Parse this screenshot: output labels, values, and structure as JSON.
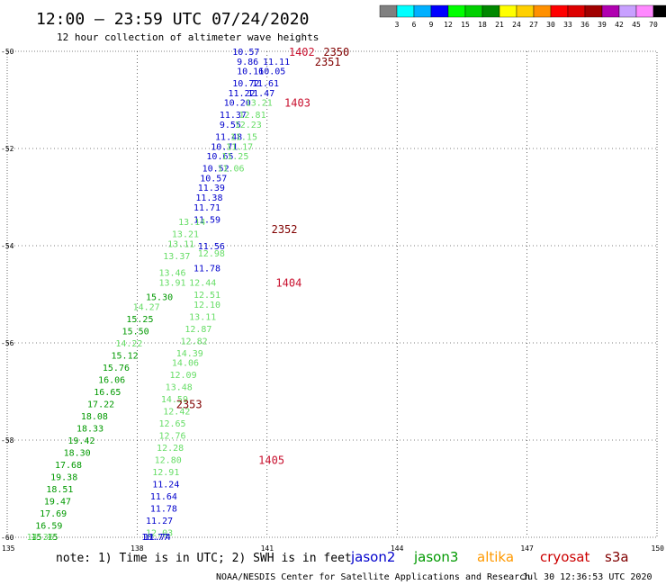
{
  "header": {
    "title": "12:00 — 23:59 UTC 07/24/2020",
    "subtitle": "12 hour collection of altimeter wave heights"
  },
  "colorbar": {
    "unit": "(ft)",
    "ticks": [
      "3",
      "6",
      "9",
      "12",
      "15",
      "18",
      "21",
      "24",
      "27",
      "30",
      "33",
      "36",
      "39",
      "42",
      "45",
      "70"
    ],
    "colors": [
      "#808080",
      "#00ffff",
      "#00b0ff",
      "#0000ff",
      "#00ff00",
      "#00d000",
      "#008800",
      "#ffff00",
      "#ffd000",
      "#ff9000",
      "#ff0000",
      "#dd0000",
      "#a00000",
      "#b000b0",
      "#c8a0ff",
      "#ff88ff",
      "#000000"
    ]
  },
  "map": {
    "lon_range": [
      135,
      150
    ],
    "lat_range": [
      -50,
      -60
    ],
    "lon_ticks": [
      "135",
      "138",
      "141",
      "144",
      "147",
      "150"
    ],
    "lat_ticks": [
      "-50",
      "-52",
      "-54",
      "-56",
      "-58",
      "-60"
    ],
    "grid": "dotted"
  },
  "satellites": [
    {
      "name": "jason2",
      "color": "#0000cc"
    },
    {
      "name": "jason3",
      "color": "#009900"
    },
    {
      "name": "altika",
      "color": "#ff9900"
    },
    {
      "name": "cryosat",
      "color": "#cc0000"
    },
    {
      "name": "s3a",
      "color": "#800000"
    }
  ],
  "track_labels": [
    {
      "text": "1402",
      "lon": 141.5,
      "lat": -50.0,
      "color": "#c8102e"
    },
    {
      "text": "2350",
      "lon": 142.3,
      "lat": -50.0,
      "color": "#800000"
    },
    {
      "text": "2351",
      "lon": 142.1,
      "lat": -50.2,
      "color": "#800000"
    },
    {
      "text": "1403",
      "lon": 141.4,
      "lat": -51.05,
      "color": "#c8102e"
    },
    {
      "text": "2352",
      "lon": 141.1,
      "lat": -53.65,
      "color": "#800000"
    },
    {
      "text": "1404",
      "lon": 141.2,
      "lat": -54.75,
      "color": "#c8102e"
    },
    {
      "text": "2353",
      "lon": 138.9,
      "lat": -57.25,
      "color": "#800000"
    },
    {
      "text": "1405",
      "lon": 140.8,
      "lat": -58.4,
      "color": "#c8102e"
    }
  ],
  "observations": [
    {
      "v": "10.57",
      "lon": 140.2,
      "lat": -50.0,
      "c": "#0000cc"
    },
    {
      "v": "9.86",
      "lon": 140.3,
      "lat": -50.2,
      "c": "#0000cc"
    },
    {
      "v": "11.11",
      "lon": 140.9,
      "lat": -50.2,
      "c": "#0000cc"
    },
    {
      "v": "10.16",
      "lon": 140.3,
      "lat": -50.4,
      "c": "#0000cc"
    },
    {
      "v": "10.05",
      "lon": 140.8,
      "lat": -50.4,
      "c": "#0000cc"
    },
    {
      "v": "10.72",
      "lon": 140.2,
      "lat": -50.65,
      "c": "#0000cc"
    },
    {
      "v": "11.61",
      "lon": 140.65,
      "lat": -50.65,
      "c": "#0000cc"
    },
    {
      "v": "11.22",
      "lon": 140.1,
      "lat": -50.85,
      "c": "#0000cc"
    },
    {
      "v": "11.47",
      "lon": 140.55,
      "lat": -50.85,
      "c": "#0000cc"
    },
    {
      "v": "10.20",
      "lon": 140.0,
      "lat": -51.05,
      "c": "#0000cc"
    },
    {
      "v": "13.21",
      "lon": 140.5,
      "lat": -51.05,
      "c": "#66dd66"
    },
    {
      "v": "11.37",
      "lon": 139.9,
      "lat": -51.3,
      "c": "#0000cc"
    },
    {
      "v": "12.81",
      "lon": 140.35,
      "lat": -51.3,
      "c": "#66dd66"
    },
    {
      "v": "9.55",
      "lon": 139.9,
      "lat": -51.5,
      "c": "#0000cc"
    },
    {
      "v": "12.23",
      "lon": 140.25,
      "lat": -51.5,
      "c": "#66dd66"
    },
    {
      "v": "11.48",
      "lon": 139.8,
      "lat": -51.75,
      "c": "#0000cc"
    },
    {
      "v": "11.15",
      "lon": 140.15,
      "lat": -51.75,
      "c": "#66dd66"
    },
    {
      "v": "10.71",
      "lon": 139.7,
      "lat": -51.95,
      "c": "#0000cc"
    },
    {
      "v": "11.17",
      "lon": 140.05,
      "lat": -51.95,
      "c": "#66dd66"
    },
    {
      "v": "10.65",
      "lon": 139.6,
      "lat": -52.15,
      "c": "#0000cc"
    },
    {
      "v": "11.25",
      "lon": 139.95,
      "lat": -52.15,
      "c": "#66dd66"
    },
    {
      "v": "10.52",
      "lon": 139.5,
      "lat": -52.4,
      "c": "#0000cc"
    },
    {
      "v": "11.06",
      "lon": 139.85,
      "lat": -52.4,
      "c": "#66dd66"
    },
    {
      "v": "10.57",
      "lon": 139.45,
      "lat": -52.6,
      "c": "#0000cc"
    },
    {
      "v": "11.39",
      "lon": 139.4,
      "lat": -52.8,
      "c": "#0000cc"
    },
    {
      "v": "11.38",
      "lon": 139.35,
      "lat": -53.0,
      "c": "#0000cc"
    },
    {
      "v": "11.71",
      "lon": 139.3,
      "lat": -53.2,
      "c": "#0000cc"
    },
    {
      "v": "11.59",
      "lon": 139.3,
      "lat": -53.45,
      "c": "#0000cc"
    },
    {
      "v": "13.14",
      "lon": 138.95,
      "lat": -53.5,
      "c": "#66dd66"
    },
    {
      "v": "13.21",
      "lon": 138.8,
      "lat": -53.75,
      "c": "#66dd66"
    },
    {
      "v": "13.11",
      "lon": 138.7,
      "lat": -53.95,
      "c": "#66dd66"
    },
    {
      "v": "11.56",
      "lon": 139.4,
      "lat": -54.0,
      "c": "#0000cc"
    },
    {
      "v": "13.37",
      "lon": 138.6,
      "lat": -54.2,
      "c": "#66dd66"
    },
    {
      "v": "12.98",
      "lon": 139.4,
      "lat": -54.15,
      "c": "#66dd66"
    },
    {
      "v": "11.78",
      "lon": 139.3,
      "lat": -54.45,
      "c": "#0000cc"
    },
    {
      "v": "13.46",
      "lon": 138.5,
      "lat": -54.55,
      "c": "#66dd66"
    },
    {
      "v": "12.44",
      "lon": 139.2,
      "lat": -54.75,
      "c": "#66dd66"
    },
    {
      "v": "13.91",
      "lon": 138.5,
      "lat": -54.75,
      "c": "#66dd66"
    },
    {
      "v": "12.51",
      "lon": 139.3,
      "lat": -55.0,
      "c": "#66dd66"
    },
    {
      "v": "15.30",
      "lon": 138.2,
      "lat": -55.05,
      "c": "#009900"
    },
    {
      "v": "12.10",
      "lon": 139.3,
      "lat": -55.2,
      "c": "#66dd66"
    },
    {
      "v": "14.27",
      "lon": 137.9,
      "lat": -55.25,
      "c": "#66dd66"
    },
    {
      "v": "13.11",
      "lon": 139.2,
      "lat": -55.45,
      "c": "#66dd66"
    },
    {
      "v": "15.25",
      "lon": 137.75,
      "lat": -55.5,
      "c": "#009900"
    },
    {
      "v": "12.87",
      "lon": 139.1,
      "lat": -55.7,
      "c": "#66dd66"
    },
    {
      "v": "15.50",
      "lon": 137.65,
      "lat": -55.75,
      "c": "#009900"
    },
    {
      "v": "12.82",
      "lon": 139.0,
      "lat": -55.95,
      "c": "#66dd66"
    },
    {
      "v": "14.22",
      "lon": 137.5,
      "lat": -56.0,
      "c": "#66dd66"
    },
    {
      "v": "14.39",
      "lon": 138.9,
      "lat": -56.2,
      "c": "#66dd66"
    },
    {
      "v": "15.12",
      "lon": 137.4,
      "lat": -56.25,
      "c": "#009900"
    },
    {
      "v": "14.06",
      "lon": 138.8,
      "lat": -56.4,
      "c": "#66dd66"
    },
    {
      "v": "15.76",
      "lon": 137.2,
      "lat": -56.5,
      "c": "#009900"
    },
    {
      "v": "12.09",
      "lon": 138.75,
      "lat": -56.65,
      "c": "#66dd66"
    },
    {
      "v": "16.06",
      "lon": 137.1,
      "lat": -56.75,
      "c": "#009900"
    },
    {
      "v": "13.48",
      "lon": 138.65,
      "lat": -56.9,
      "c": "#66dd66"
    },
    {
      "v": "16.65",
      "lon": 137.0,
      "lat": -57.0,
      "c": "#009900"
    },
    {
      "v": "14.59",
      "lon": 138.55,
      "lat": -57.15,
      "c": "#66dd66"
    },
    {
      "v": "17.22",
      "lon": 136.85,
      "lat": -57.25,
      "c": "#009900"
    },
    {
      "v": "12.42",
      "lon": 138.6,
      "lat": -57.4,
      "c": "#66dd66"
    },
    {
      "v": "18.08",
      "lon": 136.7,
      "lat": -57.5,
      "c": "#009900"
    },
    {
      "v": "12.65",
      "lon": 138.5,
      "lat": -57.65,
      "c": "#66dd66"
    },
    {
      "v": "18.33",
      "lon": 136.6,
      "lat": -57.75,
      "c": "#009900"
    },
    {
      "v": "12.76",
      "lon": 138.5,
      "lat": -57.9,
      "c": "#66dd66"
    },
    {
      "v": "19.42",
      "lon": 136.4,
      "lat": -58.0,
      "c": "#009900"
    },
    {
      "v": "12.28",
      "lon": 138.45,
      "lat": -58.15,
      "c": "#66dd66"
    },
    {
      "v": "18.30",
      "lon": 136.3,
      "lat": -58.25,
      "c": "#009900"
    },
    {
      "v": "12.80",
      "lon": 138.4,
      "lat": -58.4,
      "c": "#66dd66"
    },
    {
      "v": "17.68",
      "lon": 136.1,
      "lat": -58.5,
      "c": "#009900"
    },
    {
      "v": "12.91",
      "lon": 138.35,
      "lat": -58.65,
      "c": "#66dd66"
    },
    {
      "v": "19.38",
      "lon": 136.0,
      "lat": -58.75,
      "c": "#009900"
    },
    {
      "v": "11.24",
      "lon": 138.35,
      "lat": -58.9,
      "c": "#0000cc"
    },
    {
      "v": "18.51",
      "lon": 135.9,
      "lat": -59.0,
      "c": "#009900"
    },
    {
      "v": "11.64",
      "lon": 138.3,
      "lat": -59.15,
      "c": "#0000cc"
    },
    {
      "v": "19.47",
      "lon": 135.85,
      "lat": -59.25,
      "c": "#009900"
    },
    {
      "v": "11.78",
      "lon": 138.3,
      "lat": -59.4,
      "c": "#0000cc"
    },
    {
      "v": "17.69",
      "lon": 135.75,
      "lat": -59.5,
      "c": "#009900"
    },
    {
      "v": "11.27",
      "lon": 138.2,
      "lat": -59.65,
      "c": "#0000cc"
    },
    {
      "v": "16.59",
      "lon": 135.65,
      "lat": -59.75,
      "c": "#009900"
    },
    {
      "v": "12.03",
      "lon": 138.2,
      "lat": -59.9,
      "c": "#66dd66"
    },
    {
      "v": "15.15",
      "lon": 135.55,
      "lat": -60.0,
      "c": "#009900"
    },
    {
      "v": "11.74",
      "lon": 138.15,
      "lat": -60.15,
      "c": "#0000cc"
    },
    {
      "v": "14.36",
      "lon": 135.45,
      "lat": -60.25,
      "c": "#66dd66"
    },
    {
      "v": "10.77",
      "lon": 138.1,
      "lat": -60.4,
      "c": "#0000cc"
    }
  ],
  "footer": {
    "note": "note: 1) Time is in UTC; 2) SWH is in feet",
    "credit": "NOAA/NESDIS Center for Satellite Applications and Research",
    "timestamp": "Jul 30 12:36:53 UTC 2020"
  }
}
